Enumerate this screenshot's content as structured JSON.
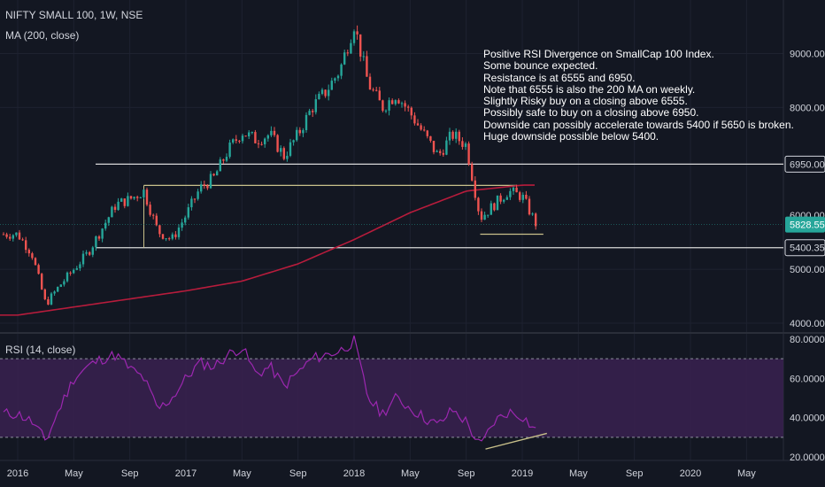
{
  "header": {
    "symbol": "NIFTY SMALL 100, 1W, NSE",
    "ma_label": "MA (200, close)",
    "rsi_label": "RSI (14, close)"
  },
  "annotation": [
    "Positive RSI Divergence on SmallCap 100 Index.",
    "Some bounce expected.",
    "Resistance is at 6555 and 6950.",
    "Note that 6555 is also the 200 MA on weekly.",
    "Slightly Risky buy on a closing above 6555.",
    "Possibly safe to buy on a closing above 6950.",
    "Downside can possibly accelerate towards 5400 if 5650 is broken.",
    "Huge downside possible below 5400."
  ],
  "colors": {
    "background": "#131722",
    "up": "#26a69a",
    "down": "#ef5350",
    "ma": "#b71c3c",
    "rsi": "#9c27b0",
    "rsi_band": "#3a2150",
    "hline": "#d8d8d8",
    "trend": "#c8c08a",
    "last_price_bg": "#26a69a"
  },
  "chart_data": [
    {
      "type": "candlestick",
      "title": "NIFTY SMALL 100, 1W, NSE",
      "y_ticks": [
        4000,
        5000,
        8000,
        9000
      ],
      "ylim": [
        3950,
        9800
      ],
      "x_ticks": [
        "2016",
        "May",
        "Sep",
        "2017",
        "May",
        "Sep",
        "2018",
        "May",
        "Sep",
        "2019",
        "May",
        "Sep",
        "2020",
        "May"
      ],
      "price_labels": [
        {
          "label": "6950.00",
          "value": 6950
        },
        {
          "label": "5828.55",
          "value": 5828.55,
          "last": true
        },
        {
          "label": "5400.35",
          "value": 5400.35
        }
      ],
      "hidden_label": "6000.00",
      "horizontal_lines": [
        6950,
        5400.35
      ],
      "resistance_segment": {
        "from": "2016-10",
        "to": "2018-12",
        "value": 6555
      },
      "close_path": [
        [
          "2016-01",
          5650
        ],
        [
          "2016-02",
          5300
        ],
        [
          "2016-03",
          4350
        ],
        [
          "2016-04",
          4700
        ],
        [
          "2016-05",
          5000
        ],
        [
          "2016-06",
          5300
        ],
        [
          "2016-07",
          5750
        ],
        [
          "2016-08",
          6200
        ],
        [
          "2016-09",
          6300
        ],
        [
          "2016-10",
          6450
        ],
        [
          "2016-11",
          5700
        ],
        [
          "2016-12",
          5550
        ],
        [
          "2017-01",
          6000
        ],
        [
          "2017-02",
          6500
        ],
        [
          "2017-03",
          6700
        ],
        [
          "2017-04",
          7200
        ],
        [
          "2017-05",
          7550
        ],
        [
          "2017-06",
          7400
        ],
        [
          "2017-07",
          7500
        ],
        [
          "2017-08",
          7100
        ],
        [
          "2017-09",
          7500
        ],
        [
          "2017-10",
          8000
        ],
        [
          "2017-11",
          8300
        ],
        [
          "2017-12",
          8700
        ],
        [
          "2018-01",
          9550
        ],
        [
          "2018-02",
          8450
        ],
        [
          "2018-03",
          8000
        ],
        [
          "2018-04",
          8250
        ],
        [
          "2018-05",
          7900
        ],
        [
          "2018-06",
          7500
        ],
        [
          "2018-07",
          7100
        ],
        [
          "2018-08",
          7500
        ],
        [
          "2018-09",
          7300
        ],
        [
          "2018-10",
          5950
        ],
        [
          "2018-11",
          6200
        ],
        [
          "2018-12",
          6450
        ],
        [
          "2019-01",
          6350
        ],
        [
          "2019-02",
          5830
        ]
      ],
      "ma_path": [
        [
          "2016-01",
          4150
        ],
        [
          "2016-05",
          4300
        ],
        [
          "2016-09",
          4450
        ],
        [
          "2017-01",
          4600
        ],
        [
          "2017-05",
          4780
        ],
        [
          "2017-09",
          5100
        ],
        [
          "2018-01",
          5550
        ],
        [
          "2018-05",
          6050
        ],
        [
          "2018-09",
          6450
        ],
        [
          "2019-01",
          6560
        ]
      ],
      "last_price": 5828.55
    },
    {
      "type": "line",
      "title": "RSI (14, close)",
      "y_ticks": [
        20,
        40,
        60,
        80
      ],
      "y_tick_labels": [
        "20.0000",
        "40.0000",
        "60.0000",
        "80.0000"
      ],
      "ylim": [
        20,
        82
      ],
      "band": [
        30,
        70
      ],
      "rsi_path": [
        [
          "2016-01",
          42
        ],
        [
          "2016-02",
          38
        ],
        [
          "2016-03",
          28
        ],
        [
          "2016-04",
          45
        ],
        [
          "2016-05",
          60
        ],
        [
          "2016-06",
          66
        ],
        [
          "2016-07",
          70
        ],
        [
          "2016-08",
          72
        ],
        [
          "2016-09",
          65
        ],
        [
          "2016-10",
          60
        ],
        [
          "2016-11",
          44
        ],
        [
          "2016-12",
          50
        ],
        [
          "2017-01",
          60
        ],
        [
          "2017-02",
          68
        ],
        [
          "2017-03",
          66
        ],
        [
          "2017-04",
          72
        ],
        [
          "2017-05",
          76
        ],
        [
          "2017-06",
          62
        ],
        [
          "2017-07",
          66
        ],
        [
          "2017-08",
          56
        ],
        [
          "2017-09",
          63
        ],
        [
          "2017-10",
          70
        ],
        [
          "2017-11",
          72
        ],
        [
          "2017-12",
          74
        ],
        [
          "2018-01",
          79
        ],
        [
          "2018-02",
          50
        ],
        [
          "2018-03",
          42
        ],
        [
          "2018-04",
          50
        ],
        [
          "2018-05",
          45
        ],
        [
          "2018-06",
          40
        ],
        [
          "2018-07",
          36
        ],
        [
          "2018-08",
          44
        ],
        [
          "2018-09",
          38
        ],
        [
          "2018-10",
          25
        ],
        [
          "2018-11",
          38
        ],
        [
          "2018-12",
          43
        ],
        [
          "2019-01",
          41
        ],
        [
          "2019-02",
          33
        ]
      ],
      "divergence_line": [
        [
          "2018-10",
          24
        ],
        [
          "2019-02",
          32
        ]
      ]
    }
  ]
}
